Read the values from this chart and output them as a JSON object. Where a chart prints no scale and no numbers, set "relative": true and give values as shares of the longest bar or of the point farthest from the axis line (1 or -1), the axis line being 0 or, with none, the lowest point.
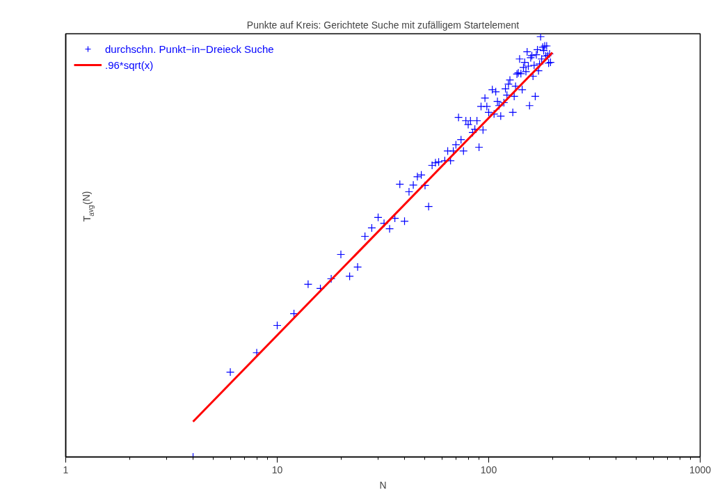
{
  "chart_data": {
    "type": "scatter",
    "title": "Punkte auf Kreis: Gerichtete Suche mit zufälligem Startelement",
    "xlabel": "N",
    "ylabel": "T$_{avg}$(N)",
    "log": "x",
    "relative": true,
    "xlim": [
      1,
      1000
    ],
    "xticks": [
      1,
      10,
      100,
      1000
    ],
    "tick_labels": "x",
    "grid": false,
    "legend": "top left",
    "series": [
      {
        "name": "durchschn. Punkt−in−Dreieck Suche",
        "color": "#0000ff",
        "marker": "cross",
        "x": [
          4,
          6,
          8,
          10,
          12,
          14,
          16,
          18,
          20,
          22,
          24,
          26,
          28,
          30,
          32,
          34,
          36,
          38,
          40,
          42,
          44,
          46,
          48,
          50,
          52,
          54,
          56,
          58,
          62,
          64,
          66,
          68,
          70,
          72,
          74,
          76,
          78,
          80,
          82,
          84,
          86,
          88,
          90,
          92,
          94,
          96,
          98,
          100,
          104,
          106,
          108,
          110,
          112,
          114,
          118,
          120,
          122,
          124,
          126,
          130,
          132,
          134,
          136,
          138,
          140,
          142,
          144,
          146,
          148,
          150,
          152,
          154,
          156,
          158,
          160,
          162,
          164,
          166,
          168,
          170,
          172,
          174,
          176,
          178,
          180,
          182,
          184,
          186,
          188,
          190,
          192,
          194,
          196
        ],
        "values": [
          0,
          0.202,
          0.248,
          0.313,
          0.341,
          0.411,
          0.401,
          0.424,
          0.482,
          0.43,
          0.452,
          0.525,
          0.545,
          0.57,
          0.556,
          0.543,
          0.568,
          0.649,
          0.561,
          0.631,
          0.647,
          0.667,
          0.671,
          0.646,
          0.596,
          0.694,
          0.7,
          0.702,
          0.705,
          0.728,
          0.705,
          0.728,
          0.743,
          0.808,
          0.755,
          0.728,
          0.8,
          0.791,
          0.8,
          0.772,
          0.78,
          0.8,
          0.737,
          0.834,
          0.778,
          0.854,
          0.834,
          0.82,
          0.874,
          0.816,
          0.869,
          0.846,
          0.836,
          0.811,
          0.843,
          0.876,
          0.861,
          0.887,
          0.897,
          0.82,
          0.858,
          0.882,
          0.911,
          0.914,
          0.947,
          0.912,
          0.874,
          0.927,
          0.939,
          0.917,
          0.964,
          0.93,
          0.836,
          0.95,
          0.955,
          0.906,
          0.932,
          0.858,
          0.957,
          0.969,
          0.919,
          0.935,
          1,
          0.947,
          0.975,
          0.967,
          0.978,
          0.954,
          0.978,
          0.955,
          0.937,
          0.959,
          0.939
        ]
      },
      {
        "name": ".96*sqrt(x)",
        "color": "#ff0000",
        "type": "line",
        "line_style": "solid",
        "x": [
          4,
          200
        ],
        "values": [
          0.084,
          0.962
        ]
      }
    ]
  }
}
